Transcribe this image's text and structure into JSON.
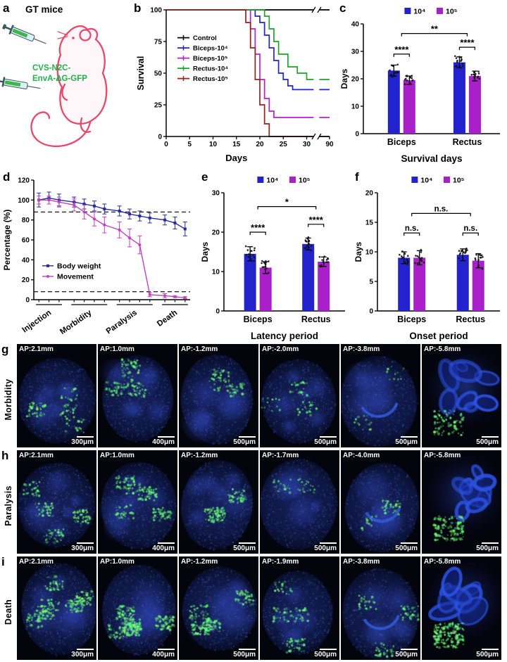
{
  "panels": {
    "a": {
      "letter": "a",
      "title": "GT mice",
      "virus_line1": "CVS-N2C-",
      "virus_line2": "EnvA-ΔG-GFP",
      "virus_color": "#21b14c",
      "mouse_color": "#e8486a"
    },
    "b": {
      "letter": "b"
    },
    "c": {
      "letter": "c"
    },
    "d": {
      "letter": "d"
    },
    "e": {
      "letter": "e"
    },
    "f": {
      "letter": "f"
    }
  },
  "chart_data": [
    {
      "id": "b",
      "type": "line",
      "subtype": "survival",
      "xlabel": "Days",
      "ylabel": "Survival",
      "xlim": [
        0,
        30
      ],
      "ylim": [
        0,
        100
      ],
      "xticks": [
        0,
        5,
        10,
        15,
        20,
        25,
        30
      ],
      "break_label": "90",
      "yticks": [
        0,
        25,
        50,
        75,
        100
      ],
      "legend_position": "middle-left",
      "grid": false,
      "series": [
        {
          "name": "Control",
          "color": "#000000",
          "x": [
            0,
            30
          ],
          "y": [
            100,
            100
          ]
        },
        {
          "name": "Biceps-10⁴",
          "color": "#2323cd",
          "x": [
            0,
            18,
            19,
            20,
            21,
            22,
            23,
            24,
            25,
            26,
            27
          ],
          "y": [
            100,
            100,
            95,
            90,
            80,
            70,
            60,
            50,
            45,
            40,
            37
          ]
        },
        {
          "name": "Biceps-10⁵",
          "color": "#b81fd0",
          "x": [
            0,
            17,
            18,
            19,
            20,
            21,
            22,
            23
          ],
          "y": [
            100,
            100,
            85,
            65,
            45,
            30,
            20,
            15
          ]
        },
        {
          "name": "Rectus-10⁴",
          "color": "#1ea32b",
          "x": [
            0,
            20,
            21,
            22,
            23,
            24,
            26,
            28,
            30
          ],
          "y": [
            100,
            100,
            95,
            85,
            75,
            65,
            55,
            50,
            45
          ]
        },
        {
          "name": "Rectus-10⁵",
          "color": "#97201f",
          "x": [
            0,
            16,
            17,
            18,
            19,
            20,
            21,
            22
          ],
          "y": [
            100,
            100,
            90,
            70,
            45,
            25,
            10,
            0
          ]
        }
      ]
    },
    {
      "id": "c",
      "type": "bar",
      "xlabel": "Survival days",
      "ylabel": "Days",
      "ylim": [
        0,
        40
      ],
      "yticks": [
        0,
        10,
        20,
        30,
        40
      ],
      "categories": [
        "Biceps",
        "Rectus"
      ],
      "series": [
        {
          "name": "10⁴",
          "color": "#2323cd",
          "values": [
            23,
            26
          ],
          "errors": [
            2,
            2
          ]
        },
        {
          "name": "10⁵",
          "color": "#a91fc9",
          "values": [
            19.5,
            21
          ],
          "errors": [
            1.5,
            1.8
          ]
        }
      ],
      "sig": {
        "within": [
          {
            "label": "****",
            "y": 29
          },
          {
            "label": "****",
            "y": 31.5
          }
        ],
        "across": {
          "label": "**",
          "y": 36.5
        }
      }
    },
    {
      "id": "d",
      "type": "line",
      "subtype": "phase",
      "ylabel": "Percentage (%)",
      "ylim": [
        0,
        120
      ],
      "yticks": [
        0,
        20,
        40,
        60,
        80,
        100,
        120
      ],
      "phases": [
        "Injection",
        "Morbidity",
        "Paralysis",
        "Death"
      ],
      "phase_sizes": [
        3,
        4,
        4,
        3
      ],
      "dashed_lines": [
        88,
        8
      ],
      "series": [
        {
          "name": "Body weight",
          "color": "#2a2a9e",
          "marker": "square",
          "values": [
            100,
            102,
            100,
            98,
            96,
            94,
            91,
            89,
            86,
            84,
            82,
            80,
            77,
            71
          ],
          "errors": [
            7,
            6,
            6,
            5,
            5,
            5,
            5,
            5,
            5,
            5,
            5,
            5,
            6,
            7
          ]
        },
        {
          "name": "Movement",
          "color": "#c33fc3",
          "marker": "circle",
          "values": [
            100,
            100,
            98,
            95,
            88,
            81,
            75,
            70,
            62,
            55,
            5,
            4,
            3,
            2
          ],
          "errors": [
            4,
            4,
            5,
            6,
            7,
            7,
            8,
            8,
            9,
            9,
            2,
            2,
            1,
            1
          ]
        }
      ]
    },
    {
      "id": "e",
      "type": "bar",
      "xlabel": "Latency period",
      "ylabel": "Days",
      "ylim": [
        0,
        30
      ],
      "yticks": [
        0,
        10,
        20,
        30
      ],
      "categories": [
        "Biceps",
        "Rectus"
      ],
      "series": [
        {
          "name": "10⁴",
          "color": "#2323cd",
          "values": [
            14.5,
            17
          ],
          "errors": [
            1.8,
            1.5
          ]
        },
        {
          "name": "10⁵",
          "color": "#a91fc9",
          "values": [
            11,
            12.5
          ],
          "errors": [
            1.5,
            1.2
          ]
        }
      ],
      "sig": {
        "within": [
          {
            "label": "****",
            "y": 20
          },
          {
            "label": "****",
            "y": 22
          }
        ],
        "across": {
          "label": "*",
          "y": 26.5
        }
      }
    },
    {
      "id": "f",
      "type": "bar",
      "xlabel": "Onset period",
      "ylabel": "Days",
      "ylim": [
        0,
        20
      ],
      "yticks": [
        0,
        5,
        10,
        15,
        20
      ],
      "categories": [
        "Biceps",
        "Rectus"
      ],
      "series": [
        {
          "name": "10⁴",
          "color": "#2323cd",
          "values": [
            9,
            9.5
          ],
          "errors": [
            1,
            1
          ]
        },
        {
          "name": "10⁵",
          "color": "#a91fc9",
          "values": [
            9,
            8.5
          ],
          "errors": [
            1.2,
            1.2
          ]
        }
      ],
      "sig": {
        "within": [
          {
            "label": "n.s.",
            "y": 13.2
          },
          {
            "label": "n.s.",
            "y": 13.2
          }
        ],
        "across": {
          "label": "n.s.",
          "y": 16.5
        }
      }
    }
  ],
  "microscopy": {
    "rows": [
      {
        "letter": "g",
        "label": "Morbidity",
        "tiles": [
          {
            "ap": "AP:2.1mm",
            "scale": "300μm"
          },
          {
            "ap": "AP:1.0mm",
            "scale": "400μm"
          },
          {
            "ap": "AP:-1.2mm",
            "scale": "500μm"
          },
          {
            "ap": "AP:-2.0mm",
            "scale": "500μm"
          },
          {
            "ap": "AP:-3.8mm",
            "scale": "500μm"
          },
          {
            "ap": "AP:-5.8mm",
            "scale": "500μm"
          }
        ]
      },
      {
        "letter": "h",
        "label": "Paralysis",
        "tiles": [
          {
            "ap": "AP:2.1mm",
            "scale": "300μm"
          },
          {
            "ap": "AP:1.0mm",
            "scale": "400μm"
          },
          {
            "ap": "AP:-1.2mm",
            "scale": "500μm"
          },
          {
            "ap": "AP:-1.7mm",
            "scale": "500μm"
          },
          {
            "ap": "AP:-4.0mm",
            "scale": "500μm"
          },
          {
            "ap": "AP:-5.8mm",
            "scale": "500μm"
          }
        ]
      },
      {
        "letter": "i",
        "label": "Death",
        "tiles": [
          {
            "ap": "AP:2.1mm",
            "scale": "300μm"
          },
          {
            "ap": "AP:1.0mm",
            "scale": "400μm"
          },
          {
            "ap": "AP:-1.2mm",
            "scale": "500μm"
          },
          {
            "ap": "AP:-1.9mm",
            "scale": "500μm"
          },
          {
            "ap": "AP:-3.8mm",
            "scale": "500μm"
          },
          {
            "ap": "AP:-5.8mm",
            "scale": "500μm"
          }
        ]
      }
    ]
  }
}
